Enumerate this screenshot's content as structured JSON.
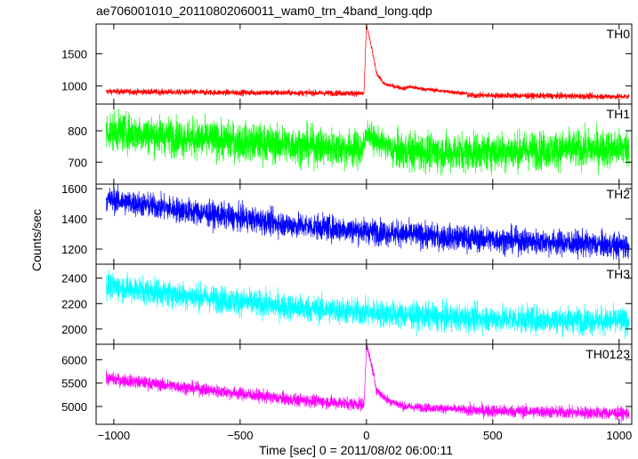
{
  "title": "ae706001010_20110802060011_wam0_trn_4band_long.qdp",
  "xlabel": "Time [sec] 0 = 2011/08/02 06:00:11",
  "ylabel": "Counts/sec",
  "chart_data": {
    "type": "line",
    "title": "ae706001010_20110802060011_wam0_trn_4band_long.qdp",
    "xlabel": "Time [sec] 0 = 2011/08/02 06:00:11",
    "ylabel": "Counts/sec",
    "xlim": [
      -1070,
      1050
    ],
    "x_ticks": [
      -1000,
      -500,
      0,
      500,
      1000
    ],
    "x_tick_labels": [
      "−1000",
      "−500",
      "0",
      "500",
      "1000"
    ],
    "grid": false,
    "series": [
      {
        "name": "TH0",
        "color": "#ff0000",
        "ylim": [
          720,
          1960
        ],
        "y_ticks": [
          1000,
          1500
        ],
        "y_tick_labels": [
          "1000",
          "1500"
        ],
        "baseline": {
          "x": [
            -1030,
            -600,
            -100,
            300,
            1040
          ],
          "y": [
            915,
            900,
            890,
            860,
            835
          ]
        },
        "noise": 30,
        "features": [
          {
            "x": -10,
            "y": 890
          },
          {
            "x": 0,
            "y": 1950
          },
          {
            "x": 20,
            "y": 1600
          },
          {
            "x": 40,
            "y": 1200
          },
          {
            "x": 70,
            "y": 1030
          },
          {
            "x": 150,
            "y": 960
          },
          {
            "x": 170,
            "y": 990
          },
          {
            "x": 210,
            "y": 960
          },
          {
            "x": 400,
            "y": 880
          }
        ]
      },
      {
        "name": "TH1",
        "color": "#00ff00",
        "ylim": [
          630,
          885
        ],
        "y_ticks": [
          700,
          800
        ],
        "y_tick_labels": [
          "700",
          "800"
        ],
        "baseline": {
          "x": [
            -1030,
            -600,
            -100,
            300,
            1040
          ],
          "y": [
            800,
            770,
            745,
            730,
            745
          ]
        },
        "noise": 40,
        "features": [
          {
            "x": -10,
            "y": 745
          },
          {
            "x": 0,
            "y": 800
          },
          {
            "x": 30,
            "y": 770
          },
          {
            "x": 100,
            "y": 745
          }
        ]
      },
      {
        "name": "TH2",
        "color": "#0000ff",
        "ylim": [
          1100,
          1630
        ],
        "y_ticks": [
          1200,
          1400,
          1600
        ],
        "y_tick_labels": [
          "1200",
          "1400",
          "1600"
        ],
        "baseline": {
          "x": [
            -1030,
            -700,
            -300,
            300,
            1040
          ],
          "y": [
            1530,
            1450,
            1360,
            1280,
            1220
          ]
        },
        "noise": 55,
        "features": []
      },
      {
        "name": "TH3",
        "color": "#00ffff",
        "ylim": [
          1880,
          2510
        ],
        "y_ticks": [
          2000,
          2200,
          2400
        ],
        "y_tick_labels": [
          "2000",
          "2200",
          "2400"
        ],
        "baseline": {
          "x": [
            -1030,
            -700,
            -300,
            300,
            1040
          ],
          "y": [
            2340,
            2260,
            2170,
            2090,
            2060
          ]
        },
        "noise": 70,
        "features": []
      },
      {
        "name": "TH0123",
        "color": "#ff00ff",
        "ylim": [
          4620,
          6330
        ],
        "y_ticks": [
          5000,
          5500,
          6000
        ],
        "y_tick_labels": [
          "5000",
          "5500",
          "6000"
        ],
        "baseline": {
          "x": [
            -1030,
            -700,
            -300,
            300,
            1040
          ],
          "y": [
            5600,
            5400,
            5150,
            4930,
            4850
          ]
        },
        "noise": 90,
        "features": [
          {
            "x": -10,
            "y": 5020
          },
          {
            "x": 0,
            "y": 6300
          },
          {
            "x": 20,
            "y": 5900
          },
          {
            "x": 40,
            "y": 5350
          },
          {
            "x": 80,
            "y": 5150
          },
          {
            "x": 150,
            "y": 5000
          },
          {
            "x": 400,
            "y": 4930
          }
        ]
      }
    ]
  }
}
